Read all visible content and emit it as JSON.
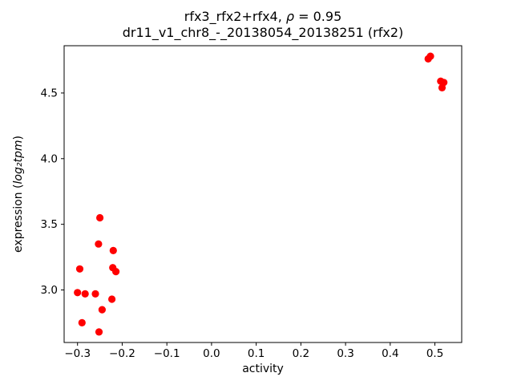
{
  "title": {
    "line1_prefix": "rfx3_rfx2+rfx4, ",
    "line1_rho": "ρ",
    "line1_suffix": " = 0.95",
    "line2": "dr11_v1_chr8_-_20138054_20138251 (rfx2)"
  },
  "axes": {
    "xlabel": "activity",
    "ylabel_prefix": "expression (",
    "ylabel_math": "log₂tpm",
    "ylabel_suffix": ")"
  },
  "chart_data": {
    "type": "scatter",
    "title": "rfx3_rfx2+rfx4, ρ = 0.95\ndr11_v1_chr8_-_20138054_20138251 (rfx2)",
    "xlabel": "activity",
    "ylabel": "expression (log₂tpm)",
    "legend": "none",
    "grid": false,
    "marker_color": "#ff0000",
    "marker_radius_px": 4.6,
    "xlim": [
      -0.33,
      0.56
    ],
    "ylim": [
      2.6,
      4.86
    ],
    "xticks": [
      {
        "v": -0.3,
        "label": "−0.3"
      },
      {
        "v": -0.2,
        "label": "−0.2"
      },
      {
        "v": -0.1,
        "label": "−0.1"
      },
      {
        "v": 0.0,
        "label": "0.0"
      },
      {
        "v": 0.1,
        "label": "0.1"
      },
      {
        "v": 0.2,
        "label": "0.2"
      },
      {
        "v": 0.3,
        "label": "0.3"
      },
      {
        "v": 0.4,
        "label": "0.4"
      },
      {
        "v": 0.5,
        "label": "0.5"
      }
    ],
    "yticks": [
      {
        "v": 3.0,
        "label": "3.0"
      },
      {
        "v": 3.5,
        "label": "3.5"
      },
      {
        "v": 4.0,
        "label": "4.0"
      },
      {
        "v": 4.5,
        "label": "4.5"
      }
    ],
    "points": [
      [
        -0.295,
        3.16
      ],
      [
        -0.3,
        2.98
      ],
      [
        -0.283,
        2.97
      ],
      [
        -0.29,
        2.75
      ],
      [
        -0.26,
        2.97
      ],
      [
        -0.25,
        3.55
      ],
      [
        -0.253,
        3.35
      ],
      [
        -0.245,
        2.85
      ],
      [
        -0.252,
        2.68
      ],
      [
        -0.22,
        3.3
      ],
      [
        -0.221,
        3.17
      ],
      [
        -0.214,
        3.14
      ],
      [
        -0.223,
        2.93
      ],
      [
        0.485,
        4.76
      ],
      [
        0.49,
        4.78
      ],
      [
        0.513,
        4.59
      ],
      [
        0.52,
        4.58
      ],
      [
        0.516,
        4.54
      ]
    ]
  }
}
